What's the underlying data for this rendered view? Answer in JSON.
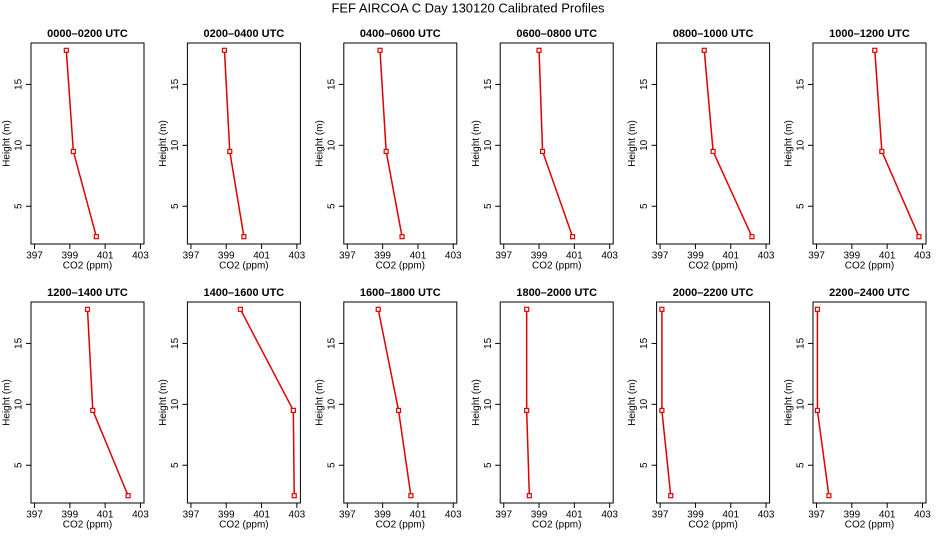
{
  "header": {
    "title": "FEF AIRCOA C  Day 130120  Calibrated Profiles"
  },
  "chart_data": [
    {
      "type": "line",
      "title": "0000–0200 UTC",
      "x": [
        398.8,
        399.2,
        400.5
      ],
      "values": [
        17.8,
        9.5,
        2.5
      ],
      "color": "#e00000",
      "xlim": [
        396.8,
        403.2
      ],
      "ylim": [
        1.9,
        18.4
      ],
      "xticks": [
        397,
        399,
        401,
        403
      ],
      "yticks": [
        5,
        10,
        15
      ],
      "xlabel": "CO2 (ppm)",
      "ylabel": "Height (m)"
    },
    {
      "type": "line",
      "title": "0200–0400 UTC",
      "x": [
        398.9,
        399.2,
        400.0
      ],
      "values": [
        17.8,
        9.5,
        2.5
      ],
      "color": "#e00000",
      "xlim": [
        396.8,
        403.2
      ],
      "ylim": [
        1.9,
        18.4
      ],
      "xticks": [
        397,
        399,
        401,
        403
      ],
      "yticks": [
        5,
        10,
        15
      ],
      "xlabel": "CO2 (ppm)",
      "ylabel": "Height (m)"
    },
    {
      "type": "line",
      "title": "0400–0600 UTC",
      "x": [
        398.85,
        399.2,
        400.1
      ],
      "values": [
        17.8,
        9.5,
        2.5
      ],
      "color": "#e00000",
      "xlim": [
        396.8,
        403.2
      ],
      "ylim": [
        1.9,
        18.4
      ],
      "xticks": [
        397,
        399,
        401,
        403
      ],
      "yticks": [
        5,
        10,
        15
      ],
      "xlabel": "CO2 (ppm)",
      "ylabel": "Height (m)"
    },
    {
      "type": "line",
      "title": "0600–0800 UTC",
      "x": [
        399.0,
        399.2,
        400.9
      ],
      "values": [
        17.8,
        9.5,
        2.5
      ],
      "color": "#e00000",
      "xlim": [
        396.8,
        403.2
      ],
      "ylim": [
        1.9,
        18.4
      ],
      "xticks": [
        397,
        399,
        401,
        403
      ],
      "yticks": [
        5,
        10,
        15
      ],
      "xlabel": "CO2 (ppm)",
      "ylabel": "Height (m)"
    },
    {
      "type": "line",
      "title": "0800–1000 UTC",
      "x": [
        399.5,
        400.0,
        402.2
      ],
      "values": [
        17.8,
        9.5,
        2.5
      ],
      "color": "#e00000",
      "xlim": [
        396.8,
        403.2
      ],
      "ylim": [
        1.9,
        18.4
      ],
      "xticks": [
        397,
        399,
        401,
        403
      ],
      "yticks": [
        5,
        10,
        15
      ],
      "xlabel": "CO2 (ppm)",
      "ylabel": "Height (m)"
    },
    {
      "type": "line",
      "title": "1000–1200 UTC",
      "x": [
        400.3,
        400.7,
        402.8
      ],
      "values": [
        17.8,
        9.5,
        2.5
      ],
      "color": "#e00000",
      "xlim": [
        396.8,
        403.2
      ],
      "ylim": [
        1.9,
        18.4
      ],
      "xticks": [
        397,
        399,
        401,
        403
      ],
      "yticks": [
        5,
        10,
        15
      ],
      "xlabel": "CO2 (ppm)",
      "ylabel": "Height (m)"
    },
    {
      "type": "line",
      "title": "1200–1400 UTC",
      "x": [
        400.0,
        400.3,
        402.3
      ],
      "values": [
        17.8,
        9.5,
        2.5
      ],
      "color": "#e00000",
      "xlim": [
        396.8,
        403.2
      ],
      "ylim": [
        1.9,
        18.4
      ],
      "xticks": [
        397,
        399,
        401,
        403
      ],
      "yticks": [
        5,
        10,
        15
      ],
      "xlabel": "CO2 (ppm)",
      "ylabel": "Height (m)"
    },
    {
      "type": "line",
      "title": "1400–1600 UTC",
      "x": [
        399.8,
        402.8,
        402.85
      ],
      "values": [
        17.8,
        9.5,
        2.5
      ],
      "color": "#e00000",
      "xlim": [
        396.8,
        403.2
      ],
      "ylim": [
        1.9,
        18.4
      ],
      "xticks": [
        397,
        399,
        401,
        403
      ],
      "yticks": [
        5,
        10,
        15
      ],
      "xlabel": "CO2 (ppm)",
      "ylabel": "Height (m)"
    },
    {
      "type": "line",
      "title": "1600–1800 UTC",
      "x": [
        398.75,
        399.9,
        400.6
      ],
      "values": [
        17.8,
        9.5,
        2.5
      ],
      "color": "#e00000",
      "xlim": [
        396.8,
        403.2
      ],
      "ylim": [
        1.9,
        18.4
      ],
      "xticks": [
        397,
        399,
        401,
        403
      ],
      "yticks": [
        5,
        10,
        15
      ],
      "xlabel": "CO2 (ppm)",
      "ylabel": "Height (m)"
    },
    {
      "type": "line",
      "title": "1800–2000 UTC",
      "x": [
        398.3,
        398.3,
        398.45
      ],
      "values": [
        17.8,
        9.5,
        2.5
      ],
      "color": "#e00000",
      "xlim": [
        396.8,
        403.2
      ],
      "ylim": [
        1.9,
        18.4
      ],
      "xticks": [
        397,
        399,
        401,
        403
      ],
      "yticks": [
        5,
        10,
        15
      ],
      "xlabel": "CO2 (ppm)",
      "ylabel": "Height (m)"
    },
    {
      "type": "line",
      "title": "2000–2200 UTC",
      "x": [
        397.1,
        397.1,
        397.6
      ],
      "values": [
        17.8,
        9.5,
        2.5
      ],
      "color": "#e00000",
      "xlim": [
        396.8,
        403.2
      ],
      "ylim": [
        1.9,
        18.4
      ],
      "xticks": [
        397,
        399,
        401,
        403
      ],
      "yticks": [
        5,
        10,
        15
      ],
      "xlabel": "CO2 (ppm)",
      "ylabel": "Height (m)"
    },
    {
      "type": "line",
      "title": "2200–2400 UTC",
      "x": [
        397.05,
        397.05,
        397.7
      ],
      "values": [
        17.8,
        9.5,
        2.5
      ],
      "color": "#e00000",
      "xlim": [
        396.8,
        403.2
      ],
      "ylim": [
        1.9,
        18.4
      ],
      "xticks": [
        397,
        399,
        401,
        403
      ],
      "yticks": [
        5,
        10,
        15
      ],
      "xlabel": "CO2 (ppm)",
      "ylabel": "Height (m)"
    }
  ]
}
